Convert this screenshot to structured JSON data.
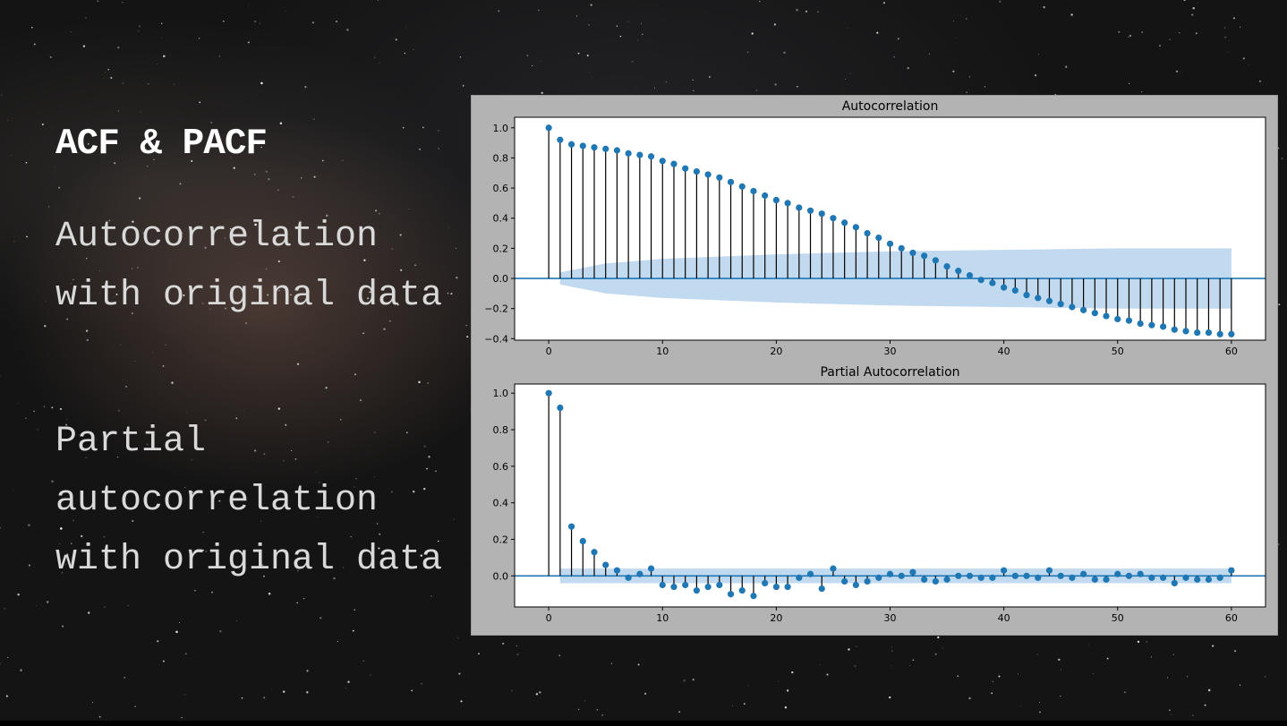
{
  "slide": {
    "title": "ACF & PACF",
    "bullets": [
      "Autocorrelation with original data",
      "Partial autocorrelation with original data"
    ]
  },
  "colors": {
    "marker": "#1f77b4",
    "stem": "#000000",
    "confidence_band": "#b6d3ec",
    "figure_background": "#b3b3b3",
    "axes_background": "#ffffff"
  },
  "chart_data": [
    {
      "type": "stem",
      "title": "Autocorrelation",
      "xlabel": "",
      "ylabel": "",
      "xlim": [
        -3,
        63
      ],
      "ylim": [
        -0.41,
        1.07
      ],
      "xticks": [
        0,
        10,
        20,
        30,
        40,
        50,
        60
      ],
      "yticks": [
        -0.4,
        -0.2,
        0.0,
        0.2,
        0.4,
        0.6,
        0.8,
        1.0
      ],
      "grid": false,
      "x": [
        0,
        1,
        2,
        3,
        4,
        5,
        6,
        7,
        8,
        9,
        10,
        11,
        12,
        13,
        14,
        15,
        16,
        17,
        18,
        19,
        20,
        21,
        22,
        23,
        24,
        25,
        26,
        27,
        28,
        29,
        30,
        31,
        32,
        33,
        34,
        35,
        36,
        37,
        38,
        39,
        40,
        41,
        42,
        43,
        44,
        45,
        46,
        47,
        48,
        49,
        50,
        51,
        52,
        53,
        54,
        55,
        56,
        57,
        58,
        59,
        60
      ],
      "values": [
        1.0,
        0.92,
        0.89,
        0.88,
        0.87,
        0.86,
        0.85,
        0.83,
        0.82,
        0.81,
        0.78,
        0.76,
        0.73,
        0.71,
        0.69,
        0.67,
        0.64,
        0.61,
        0.58,
        0.55,
        0.52,
        0.5,
        0.47,
        0.45,
        0.43,
        0.4,
        0.37,
        0.34,
        0.3,
        0.27,
        0.23,
        0.2,
        0.17,
        0.15,
        0.12,
        0.08,
        0.05,
        0.02,
        -0.01,
        -0.03,
        -0.06,
        -0.08,
        -0.11,
        -0.13,
        -0.15,
        -0.17,
        -0.19,
        -0.21,
        -0.23,
        -0.25,
        -0.27,
        -0.28,
        -0.3,
        -0.31,
        -0.32,
        -0.34,
        -0.35,
        -0.36,
        -0.36,
        -0.37,
        -0.37
      ],
      "confidence_band": {
        "x": [
          1,
          5,
          10,
          20,
          30,
          40,
          50,
          60
        ],
        "upper": [
          0.04,
          0.1,
          0.13,
          0.16,
          0.18,
          0.19,
          0.2,
          0.2
        ],
        "lower": [
          -0.04,
          -0.1,
          -0.13,
          -0.16,
          -0.18,
          -0.19,
          -0.2,
          -0.2
        ]
      }
    },
    {
      "type": "stem",
      "title": "Partial Autocorrelation",
      "xlabel": "",
      "ylabel": "",
      "xlim": [
        -3,
        63
      ],
      "ylim": [
        -0.17,
        1.05
      ],
      "xticks": [
        0,
        10,
        20,
        30,
        40,
        50,
        60
      ],
      "yticks": [
        0.0,
        0.2,
        0.4,
        0.6,
        0.8,
        1.0
      ],
      "grid": false,
      "x": [
        0,
        1,
        2,
        3,
        4,
        5,
        6,
        7,
        8,
        9,
        10,
        11,
        12,
        13,
        14,
        15,
        16,
        17,
        18,
        19,
        20,
        21,
        22,
        23,
        24,
        25,
        26,
        27,
        28,
        29,
        30,
        31,
        32,
        33,
        34,
        35,
        36,
        37,
        38,
        39,
        40,
        41,
        42,
        43,
        44,
        45,
        46,
        47,
        48,
        49,
        50,
        51,
        52,
        53,
        54,
        55,
        56,
        57,
        58,
        59,
        60
      ],
      "values": [
        1.0,
        0.92,
        0.27,
        0.19,
        0.13,
        0.06,
        0.03,
        -0.01,
        0.01,
        0.04,
        -0.05,
        -0.06,
        -0.05,
        -0.08,
        -0.06,
        -0.05,
        -0.1,
        -0.08,
        -0.11,
        -0.04,
        -0.06,
        -0.06,
        -0.01,
        0.01,
        -0.07,
        0.04,
        -0.03,
        -0.05,
        -0.03,
        -0.01,
        0.01,
        0.0,
        0.02,
        -0.02,
        -0.03,
        -0.02,
        0.0,
        0.0,
        -0.01,
        -0.01,
        0.03,
        0.0,
        0.0,
        -0.01,
        0.03,
        0.0,
        -0.01,
        0.01,
        -0.02,
        -0.02,
        0.01,
        0.0,
        0.01,
        -0.01,
        -0.01,
        -0.04,
        -0.01,
        -0.02,
        -0.02,
        -0.01,
        0.03
      ],
      "confidence_band": {
        "x": [
          1,
          60
        ],
        "upper": [
          0.04,
          0.04
        ],
        "lower": [
          -0.04,
          -0.04
        ]
      }
    }
  ]
}
